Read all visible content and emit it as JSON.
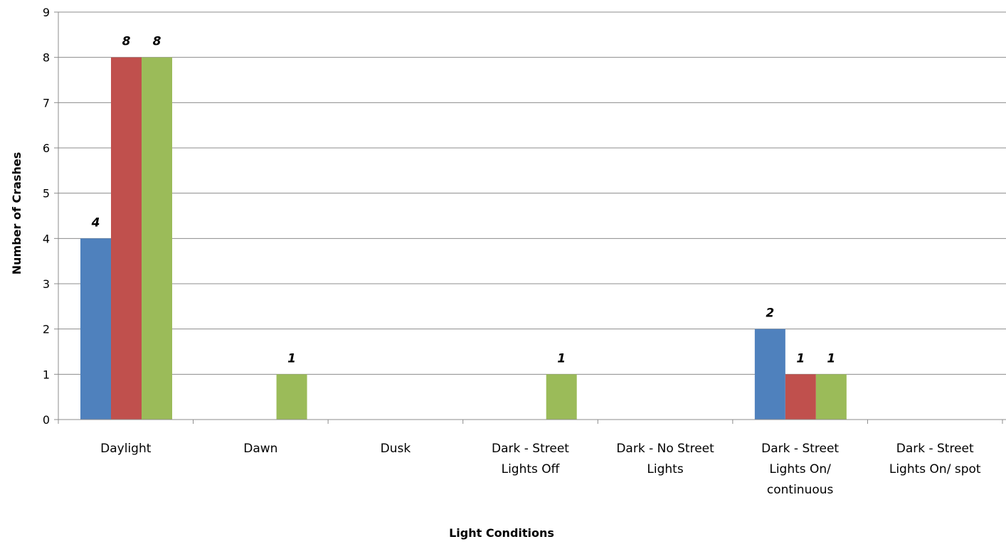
{
  "chart_data": {
    "type": "bar",
    "title": "",
    "xlabel": "Light Conditions",
    "ylabel": "Number of Crashes",
    "ylim": [
      0,
      9
    ],
    "yticks": [
      0,
      1,
      2,
      3,
      4,
      5,
      6,
      7,
      8,
      9
    ],
    "grid": true,
    "legend": "none",
    "categories": [
      [
        "Daylight"
      ],
      [
        "Dawn"
      ],
      [
        "Dusk"
      ],
      [
        "Dark - Street",
        "Lights Off"
      ],
      [
        "Dark - No Street",
        "Lights"
      ],
      [
        "Dark - Street",
        "Lights On/",
        "continuous"
      ],
      [
        "Dark - Street",
        "Lights On/ spot"
      ]
    ],
    "series": [
      {
        "color": "#4F81BD",
        "values": [
          4,
          0,
          0,
          0,
          0,
          2,
          0
        ]
      },
      {
        "color": "#C0504D",
        "values": [
          8,
          0,
          0,
          0,
          0,
          1,
          0
        ]
      },
      {
        "color": "#9BBB59",
        "values": [
          8,
          1,
          0,
          1,
          0,
          1,
          0
        ]
      }
    ]
  }
}
